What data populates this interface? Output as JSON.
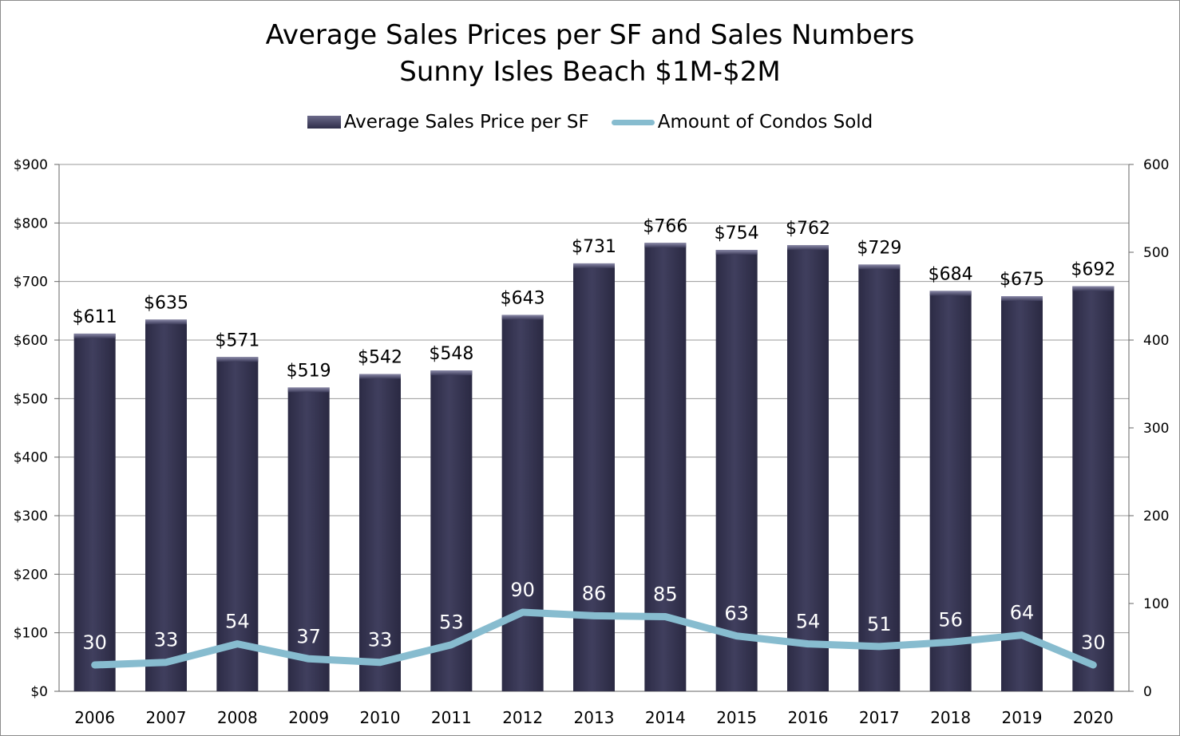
{
  "chart_data": {
    "type": "bar",
    "title": "Average Sales Prices per SF and Sales Numbers",
    "subtitle": "Sunny Isles Beach $1M-$2M",
    "categories": [
      "2006",
      "2007",
      "2008",
      "2009",
      "2010",
      "2011",
      "2012",
      "2013",
      "2014",
      "2015",
      "2016",
      "2017",
      "2018",
      "2019",
      "2020"
    ],
    "series": [
      {
        "name": "Average Sales Price per SF",
        "type": "bar",
        "axis": "left",
        "values": [
          611,
          635,
          571,
          519,
          542,
          548,
          643,
          731,
          766,
          754,
          762,
          729,
          684,
          675,
          692
        ],
        "labels": [
          "$611",
          "$635",
          "$571",
          "$519",
          "$542",
          "$548",
          "$643",
          "$731",
          "$766",
          "$754",
          "$762",
          "$729",
          "$684",
          "$675",
          "$692"
        ],
        "color": "#3b3a58"
      },
      {
        "name": "Amount of Condos Sold",
        "type": "line",
        "axis": "right",
        "values": [
          30,
          33,
          54,
          37,
          33,
          53,
          90,
          86,
          85,
          63,
          54,
          51,
          56,
          64,
          30
        ],
        "labels": [
          "30",
          "33",
          "54",
          "37",
          "33",
          "53",
          "90",
          "86",
          "85",
          "63",
          "54",
          "51",
          "56",
          "64",
          "30"
        ],
        "color": "#87bccf"
      }
    ],
    "y_left": {
      "ylim": [
        0,
        900
      ],
      "tick_labels": [
        "$0",
        "$100",
        "$200",
        "$300",
        "$400",
        "$500",
        "$600",
        "$700",
        "$800",
        "$900"
      ]
    },
    "y_right": {
      "ylim": [
        0,
        600
      ],
      "tick_labels": [
        "0",
        "100",
        "200",
        "300",
        "400",
        "500",
        "600"
      ]
    },
    "grid": true,
    "legend_position": "top"
  }
}
